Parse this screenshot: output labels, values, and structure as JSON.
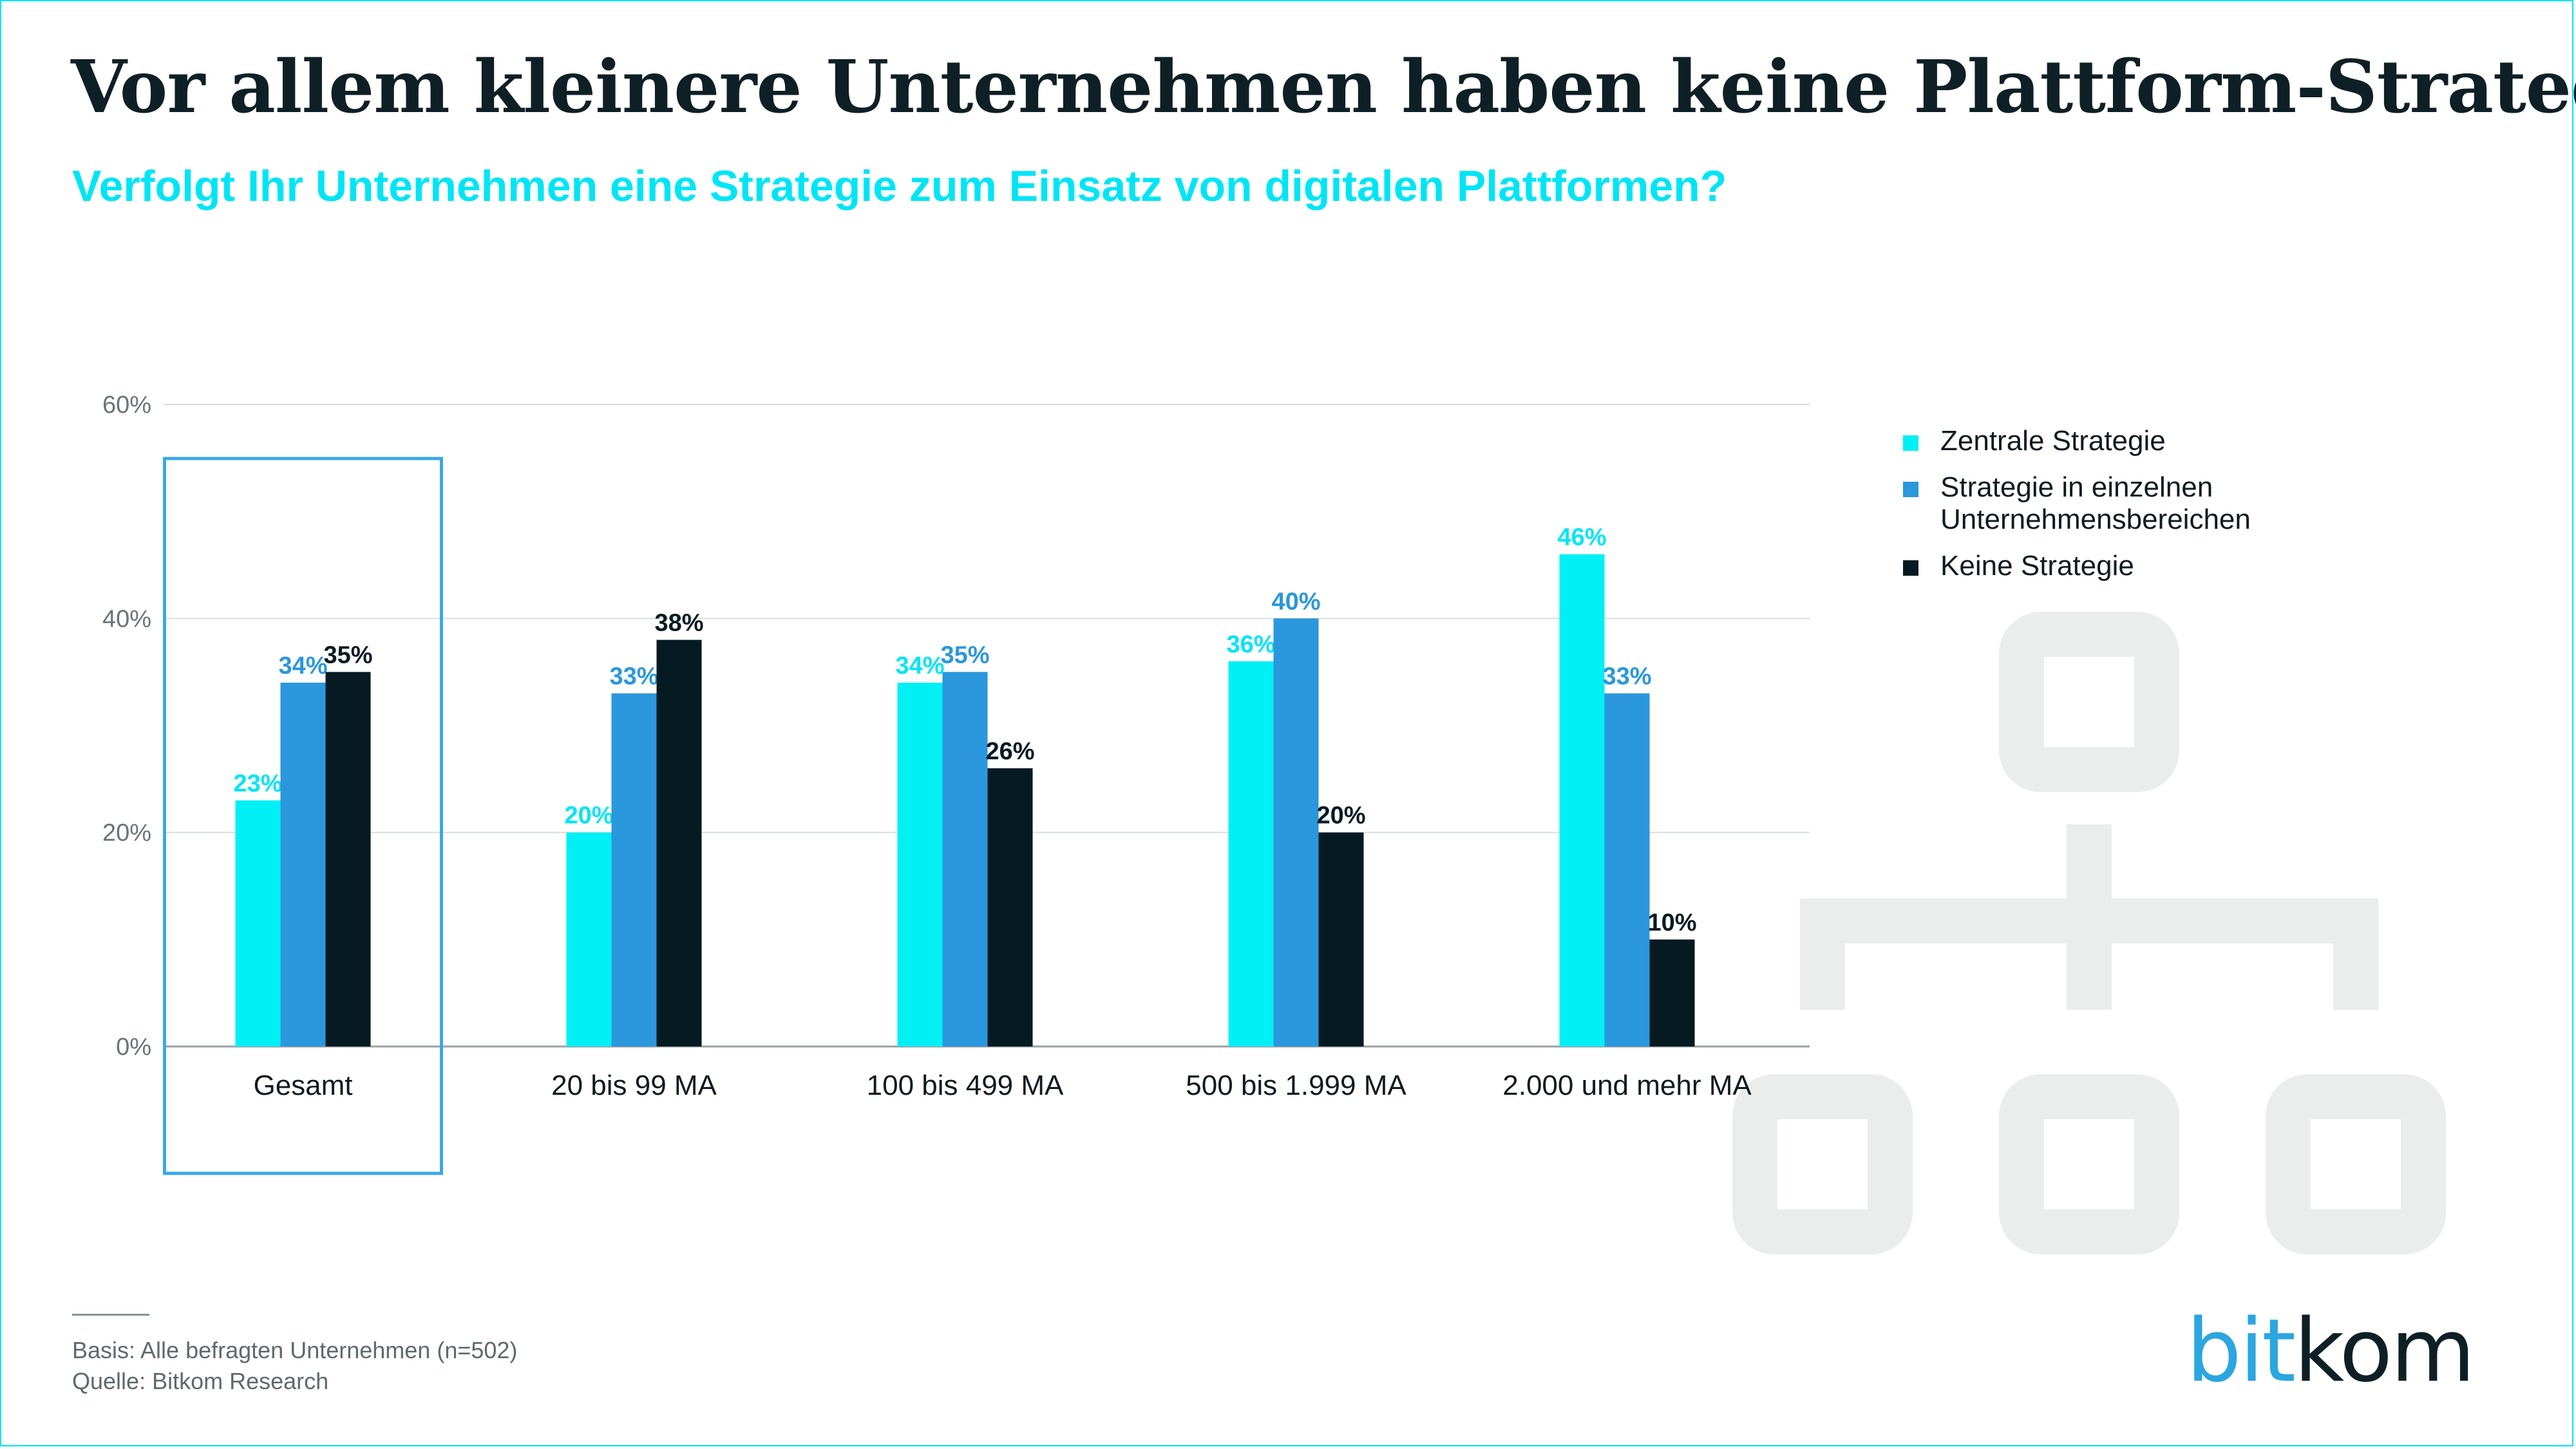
{
  "header": {
    "title": "Vor allem kleinere Unternehmen haben keine Plattform-Strategie",
    "subtitle": "Verfolgt Ihr Unternehmen eine Strategie zum Einsatz von digitalen Plattformen?"
  },
  "chart_data": {
    "type": "bar",
    "categories": [
      "Gesamt",
      "20 bis 99 MA",
      "100 bis 499 MA",
      "500 bis 1.999 MA",
      "2.000 und mehr MA"
    ],
    "series": [
      {
        "name": "Zentrale Strategie",
        "values": [
          23,
          20,
          34,
          36,
          46
        ],
        "color": "#00f0f5",
        "label_color": "#00e5f5"
      },
      {
        "name": "Strategie in einzelnen Unternehmensbereichen",
        "values": [
          34,
          33,
          35,
          40,
          33
        ],
        "color": "#2b97dc",
        "label_color": "#2b97dc"
      },
      {
        "name": "Keine Strategie",
        "values": [
          35,
          38,
          26,
          20,
          10
        ],
        "color": "#061a22",
        "label_color": "#061a22"
      }
    ],
    "ylim": [
      0,
      60
    ],
    "yticks": [
      0,
      20,
      40,
      60
    ],
    "ytick_labels": [
      "0%",
      "20%",
      "40%",
      "60%"
    ],
    "value_suffix": "%",
    "grid": true,
    "legend_position": "right",
    "highlighted_category": "Gesamt",
    "highlight_color": "#3aa8e6"
  },
  "legend": {
    "items": [
      {
        "label": "Zentrale Strategie",
        "color": "#00f0f5"
      },
      {
        "label": "Strategie in einzelnen Unternehmensbereichen",
        "color": "#2b97dc"
      },
      {
        "label": "Keine Strategie",
        "color": "#061a22"
      }
    ]
  },
  "footer": {
    "basis": "Basis: Alle befragten Unternehmen (n=502)",
    "source": "Quelle: Bitkom Research"
  },
  "logo": {
    "part1": "bit",
    "part2": "kom"
  },
  "colors": {
    "accent": "#00e5f5",
    "icon": "#ebeded",
    "frame": "#00e5f5"
  },
  "decoration": {
    "icon": "network-hierarchy-icon"
  }
}
